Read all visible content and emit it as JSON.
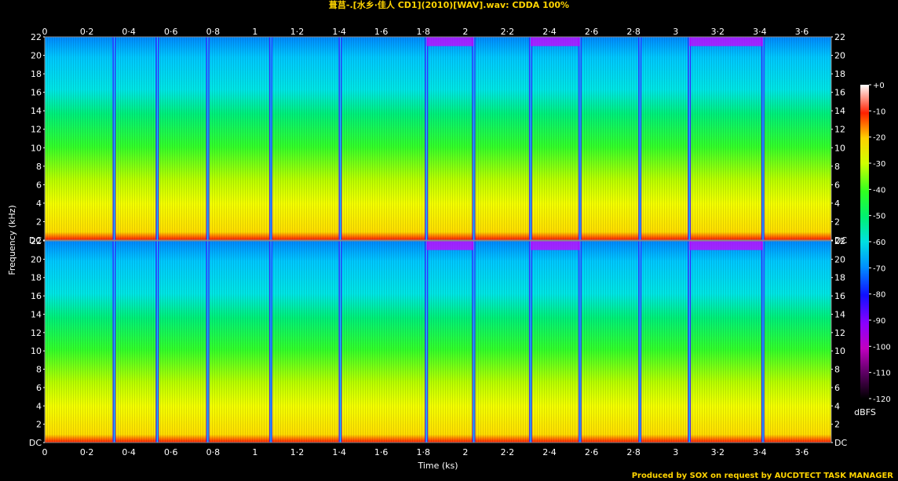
{
  "title": "葺莒-.[水乡·佳人 CD1](2010)[WAV].wav: CDDA 100%",
  "footer": "Produced by SOX on request by AUCDTECT TASK MANAGER",
  "chart_data": {
    "type": "heatmap",
    "title": "葺莒-.[水乡·佳人 CD1](2010)[WAV].wav: CDDA 100%",
    "xlabel": "Time (ks)",
    "ylabel": "Frequency (kHz)",
    "colorbar_label": "dBFS",
    "channels": 2,
    "x_ticks": [
      "0",
      "0·2",
      "0·4",
      "0·6",
      "0·8",
      "1",
      "1·2",
      "1·4",
      "1·6",
      "1·8",
      "2",
      "2·2",
      "2·4",
      "2·6",
      "2·8",
      "3",
      "3·2",
      "3·4",
      "3·6"
    ],
    "x_tick_values": [
      0,
      0.2,
      0.4,
      0.6,
      0.8,
      1.0,
      1.2,
      1.4,
      1.6,
      1.8,
      2.0,
      2.2,
      2.4,
      2.6,
      2.8,
      3.0,
      3.2,
      3.4,
      3.6
    ],
    "xlim": [
      0,
      3.74
    ],
    "y_ticks": [
      "DC",
      "2",
      "4",
      "6",
      "8",
      "10",
      "12",
      "14",
      "16",
      "18",
      "20",
      "22"
    ],
    "y_tick_values": [
      0,
      2,
      4,
      6,
      8,
      10,
      12,
      14,
      16,
      18,
      20,
      22
    ],
    "ylim": [
      0,
      22
    ],
    "colorbar_ticks": [
      "+0",
      "-10",
      "-20",
      "-30",
      "-40",
      "-50",
      "-60",
      "-70",
      "-80",
      "-90",
      "-100",
      "-110",
      "-120"
    ],
    "colorbar_values": [
      0,
      -10,
      -20,
      -30,
      -40,
      -50,
      -60,
      -70,
      -80,
      -90,
      -100,
      -110,
      -120
    ],
    "colorbar_range": [
      -120,
      0
    ],
    "track_boundaries_ks": [
      0.33,
      0.535,
      0.775,
      1.075,
      1.405,
      1.815,
      2.04,
      2.31,
      2.545,
      2.83,
      3.065,
      3.415
    ],
    "colors": {
      "title": "#ffd400",
      "footer": "#ffd400",
      "axis": "#ffffff",
      "background": "#000000"
    }
  }
}
